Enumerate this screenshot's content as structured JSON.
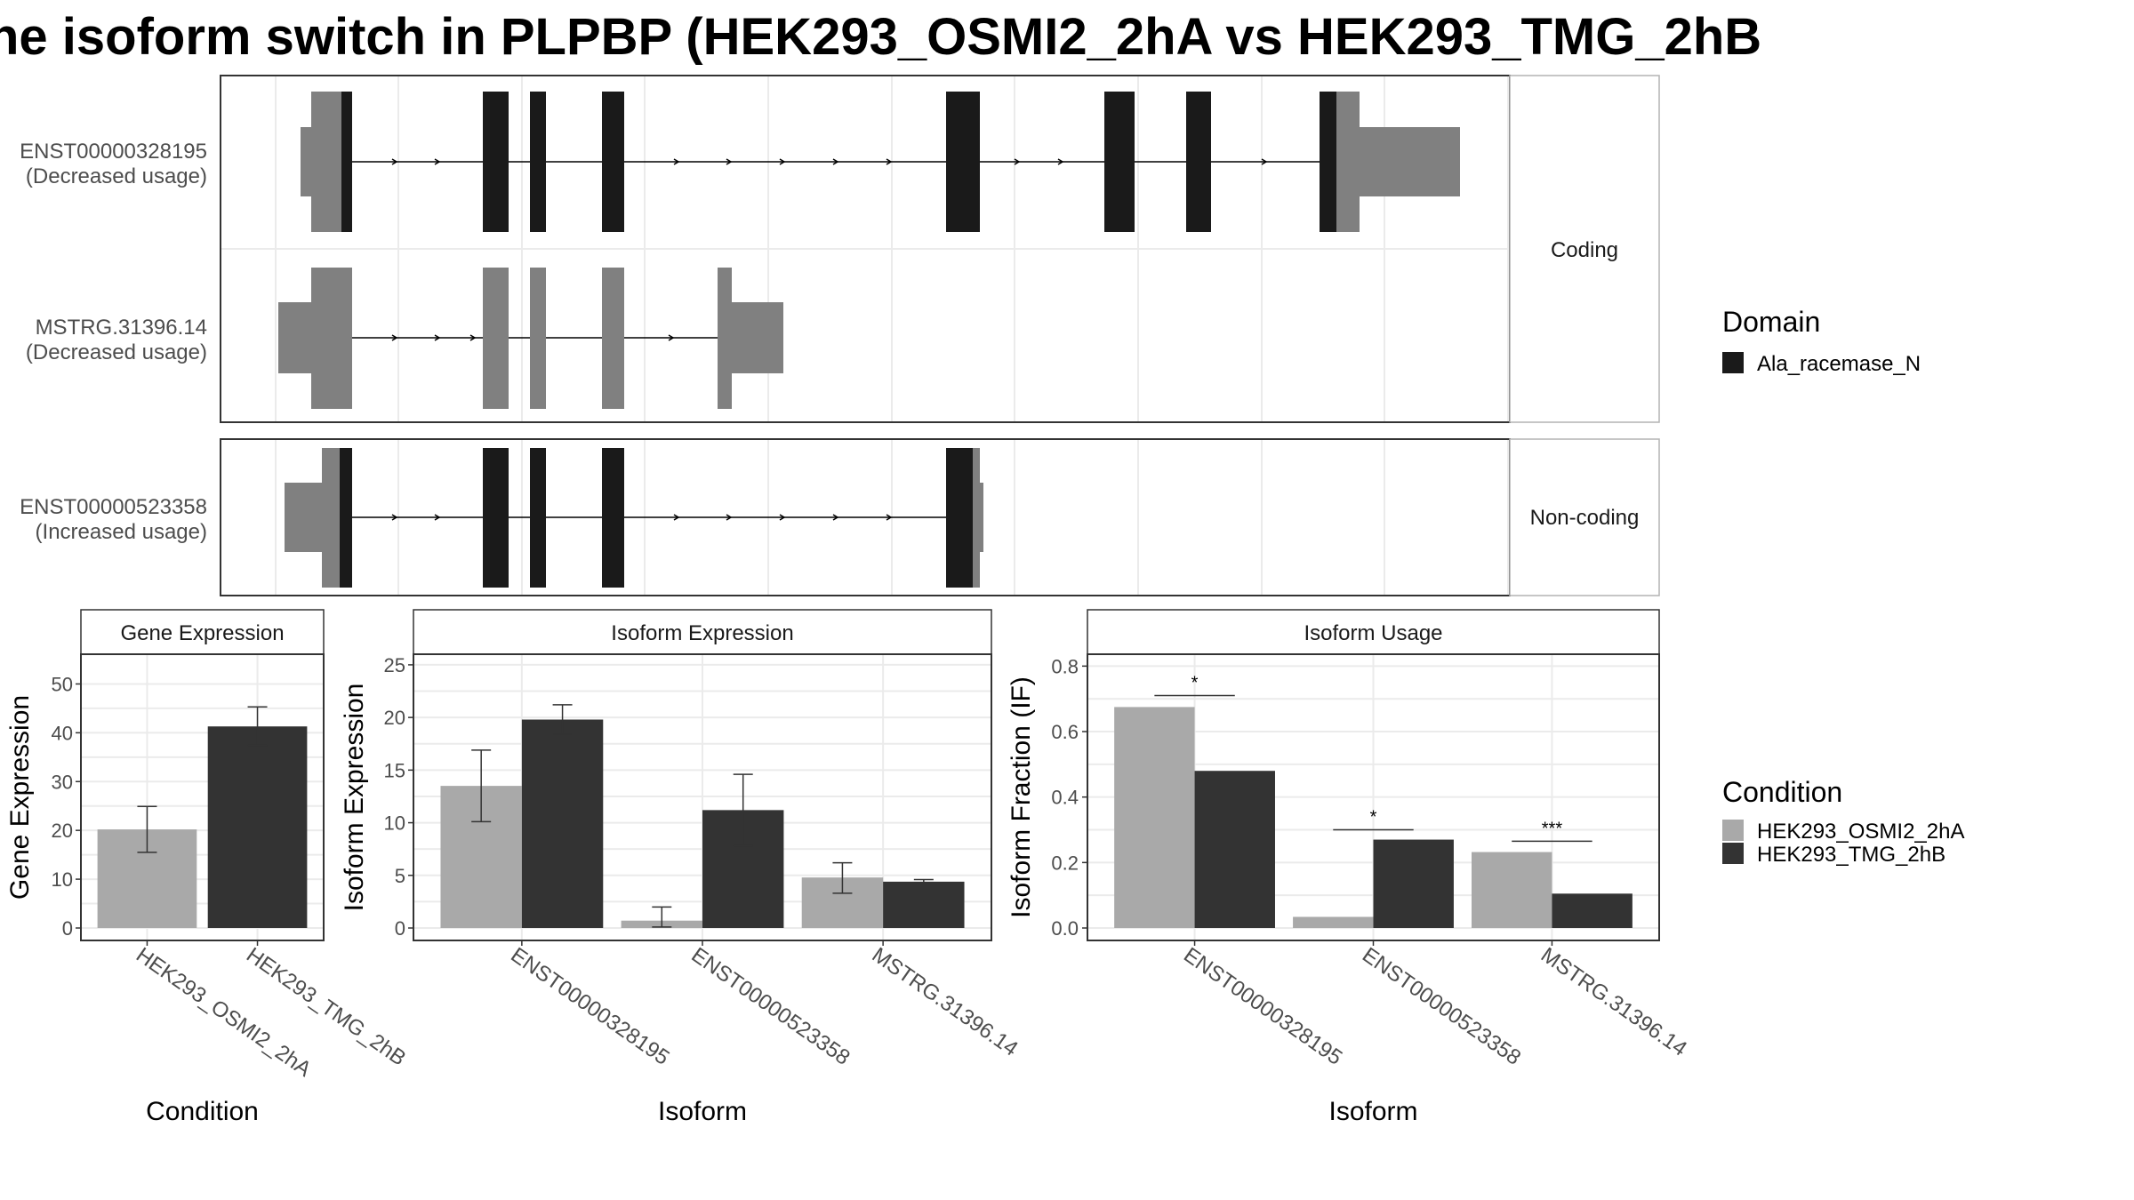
{
  "title": "he isoform switch in PLPBP (HEK293_OSMI2_2hA vs HEK293_TMG_2hB",
  "colors": {
    "domain": "#1a1a1a",
    "utr": "#808080",
    "cond_a": "#a9a9a9",
    "cond_b": "#333333",
    "grid": "#ebebeb",
    "panel_border": "#333333"
  },
  "transcripts": {
    "coding_strip": "Coding",
    "noncoding_strip": "Non-coding",
    "tracks": [
      {
        "id": "ENST00000328195",
        "note": "(Decreased usage)",
        "group": "coding"
      },
      {
        "id": "MSTRG.31396.14",
        "note": "(Decreased usage)",
        "group": "coding"
      },
      {
        "id": "ENST00000523358",
        "note": "(Increased usage)",
        "group": "noncoding"
      }
    ]
  },
  "legend": {
    "domain_title": "Domain",
    "domain_items": [
      "Ala_racemase_N"
    ],
    "condition_title": "Condition",
    "condition_items": [
      "HEK293_OSMI2_2hA",
      "HEK293_TMG_2hB"
    ]
  },
  "chart_data": [
    {
      "type": "bar",
      "title": "Gene Expression",
      "xlabel": "Condition",
      "ylabel": "Gene Expression",
      "ylim": [
        0,
        55
      ],
      "yticks": [
        "0",
        "10",
        "20",
        "30",
        "40",
        "50"
      ],
      "categories": [
        "HEK293_OSMI2_2hA",
        "HEK293_TMG_2hB"
      ],
      "values": [
        20.2,
        41.3
      ],
      "errors": [
        [
          15.5,
          24.9
        ],
        [
          37.4,
          45.3
        ]
      ]
    },
    {
      "type": "bar",
      "title": "Isoform Expression",
      "xlabel": "Isoform",
      "ylabel": "Isoform Expression",
      "ylim": [
        0,
        25.5
      ],
      "yticks": [
        "0",
        "5",
        "10",
        "15",
        "20",
        "25"
      ],
      "categories": [
        "ENST00000328195",
        "ENST00000523358",
        "MSTRG.31396.14"
      ],
      "series": [
        {
          "name": "HEK293_OSMI2_2hA",
          "values": [
            13.5,
            0.7,
            4.8
          ],
          "errors": [
            [
              10.1,
              16.9
            ],
            [
              0.1,
              2.0
            ],
            [
              3.3,
              6.2
            ]
          ]
        },
        {
          "name": "HEK293_TMG_2hB",
          "values": [
            19.8,
            11.2,
            4.4
          ],
          "errors": [
            [
              18.4,
              21.2
            ],
            [
              7.8,
              14.6
            ],
            [
              4.2,
              4.6
            ]
          ]
        }
      ]
    },
    {
      "type": "bar",
      "title": "Isoform Usage",
      "xlabel": "Isoform",
      "ylabel": "Isoform Fraction (IF)",
      "ylim": [
        0,
        0.82
      ],
      "yticks": [
        "0.0",
        "0.2",
        "0.4",
        "0.6",
        "0.8"
      ],
      "categories": [
        "ENST00000328195",
        "ENST00000523358",
        "MSTRG.31396.14"
      ],
      "series": [
        {
          "name": "HEK293_OSMI2_2hA",
          "values": [
            0.675,
            0.034,
            0.232
          ]
        },
        {
          "name": "HEK293_TMG_2hB",
          "values": [
            0.48,
            0.27,
            0.105
          ]
        }
      ],
      "significance": [
        {
          "label": "*",
          "y": 0.71
        },
        {
          "label": "*",
          "y": 0.3
        },
        {
          "label": "***",
          "y": 0.265
        }
      ]
    }
  ]
}
